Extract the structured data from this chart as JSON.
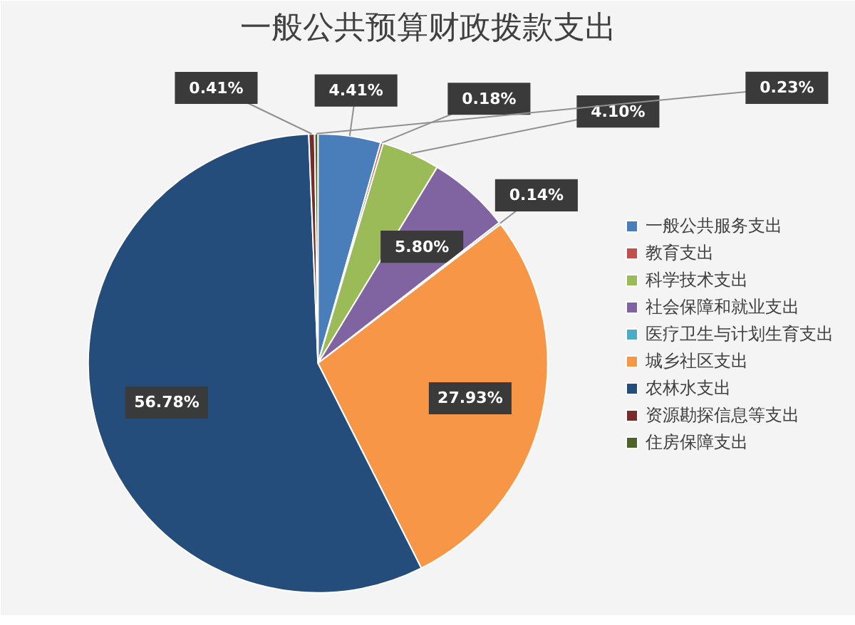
{
  "chart_data": {
    "type": "pie",
    "title": "一般公共预算财政拨款支出",
    "categories": [
      "一般公共服务支出",
      "教育支出",
      "科学技术支出",
      "社会保障和就业支出",
      "医疗卫生与计划生育支出",
      "城乡社区支出",
      "农林水支出",
      "资源勘探信息等支出",
      "住房保障支出"
    ],
    "values": [
      4.41,
      0.18,
      4.1,
      5.8,
      0.14,
      27.93,
      56.78,
      0.41,
      0.23
    ],
    "value_labels": [
      "4.41%",
      "0.18%",
      "4.10%",
      "5.80%",
      "0.14%",
      "27.93%",
      "56.78%",
      "0.41%",
      "0.23%"
    ],
    "colors": [
      "#4a7ebb",
      "#c0504d",
      "#9bbb59",
      "#8064a2",
      "#4bacc6",
      "#f79646",
      "#254d7c",
      "#772c2a",
      "#4f6228"
    ],
    "legend": "right"
  }
}
